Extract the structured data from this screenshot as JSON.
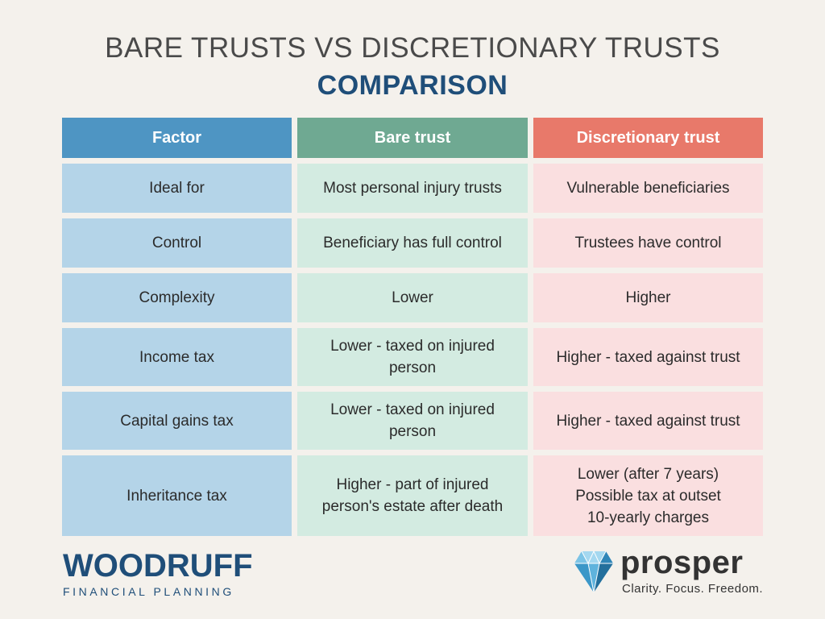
{
  "title": "BARE TRUSTS VS DISCRETIONARY TRUSTS",
  "subtitle": "COMPARISON",
  "table": {
    "headers": [
      "Factor",
      "Bare trust",
      "Discretionary trust"
    ],
    "rows": [
      {
        "factor": "Ideal for",
        "bare": [
          "Most personal injury trusts"
        ],
        "discretionary": [
          "Vulnerable beneficiaries"
        ]
      },
      {
        "factor": "Control",
        "bare": [
          "Beneficiary has full control"
        ],
        "discretionary": [
          "Trustees have control"
        ]
      },
      {
        "factor": "Complexity",
        "bare": [
          "Lower"
        ],
        "discretionary": [
          "Higher"
        ]
      },
      {
        "factor": "Income tax",
        "bare": [
          "Lower - taxed on injured",
          "person"
        ],
        "discretionary": [
          "Higher - taxed against trust"
        ]
      },
      {
        "factor": "Capital gains tax",
        "bare": [
          "Lower - taxed on injured",
          "person"
        ],
        "discretionary": [
          "Higher - taxed against trust"
        ]
      },
      {
        "factor": "Inheritance tax",
        "bare": [
          "Higher - part of injured",
          "person's estate after death"
        ],
        "discretionary": [
          "Lower (after 7 years)",
          "Possible tax at outset",
          "10-yearly charges"
        ]
      }
    ]
  },
  "logos": {
    "woodruff_name": "WOODRUFF",
    "woodruff_sub": "FINANCIAL PLANNING",
    "prosper_name": "prosper",
    "prosper_tagline": "Clarity. Focus. Freedom."
  },
  "colors": {
    "title": "#4a4a4a",
    "accent": "#1f4e79",
    "factor_header": "#4e95c3",
    "bare_header": "#6fa992",
    "discretionary_header": "#e8796a",
    "factor_cell": "#b4d4e8",
    "bare_cell": "#d3ebe1",
    "discretionary_cell": "#fadfe0",
    "gem": "#4aa7d6"
  }
}
